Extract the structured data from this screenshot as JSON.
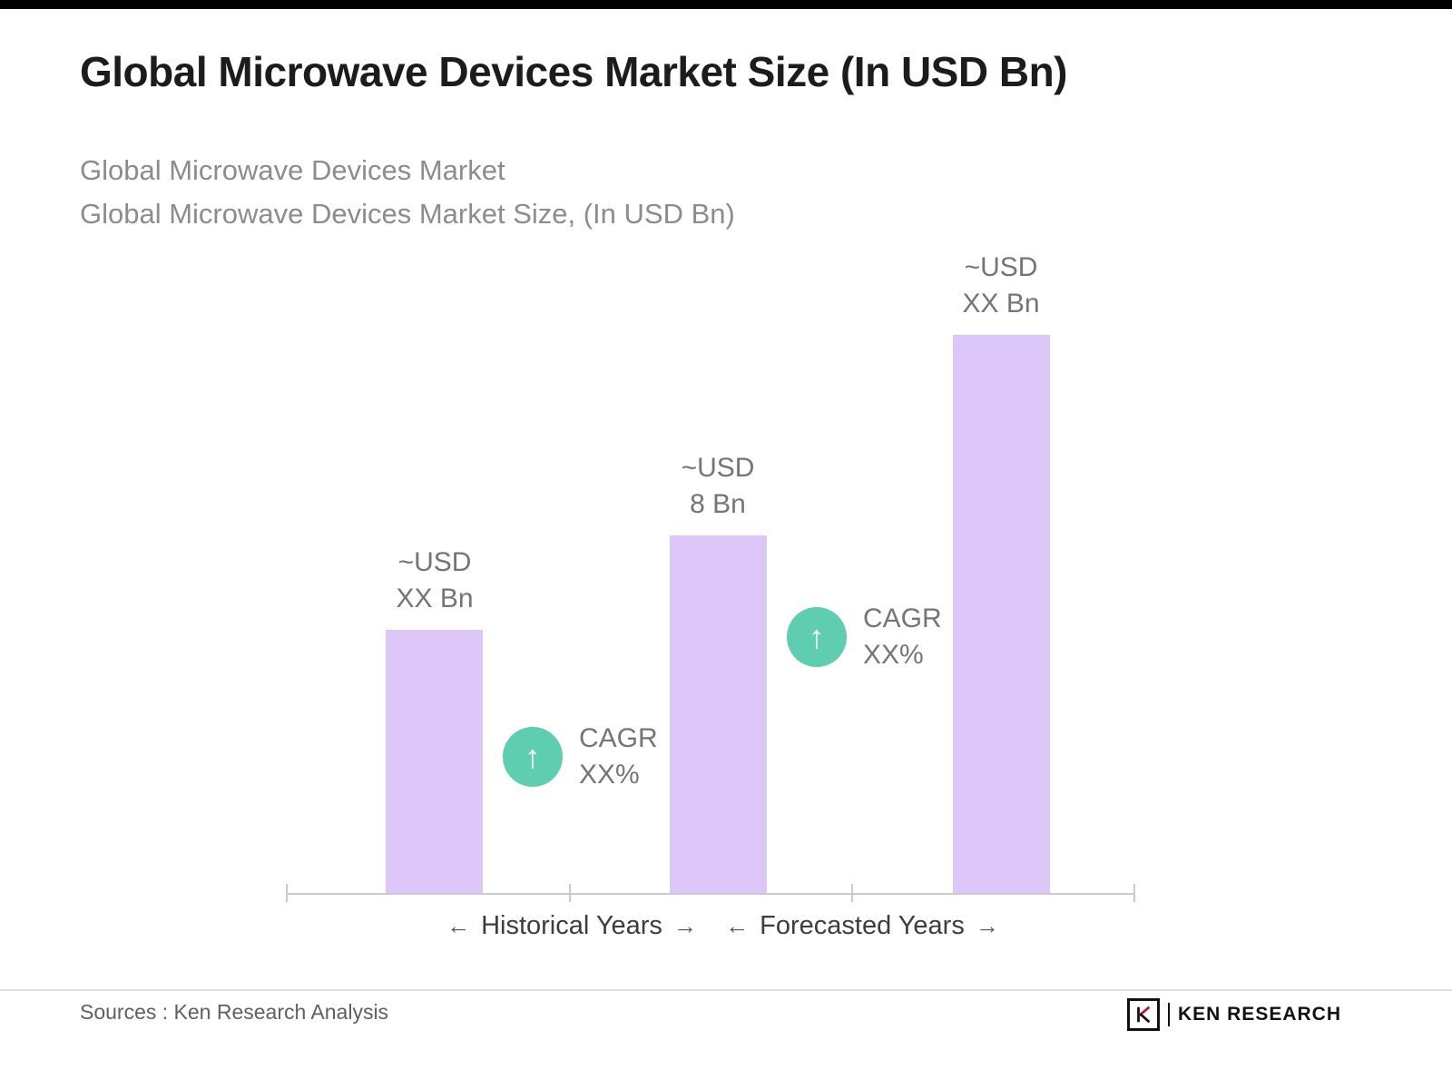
{
  "header": {
    "title": "Global Microwave Devices Market Size (In USD Bn)",
    "subtitle_lines": [
      "Global Microwave Devices Market",
      "Global Microwave Devices Market Size, (In USD Bn)"
    ]
  },
  "chart_data": {
    "type": "bar",
    "title": "Global Microwave Devices Market Size (In USD Bn)",
    "ylabel": "",
    "xlabel": "",
    "ylim": [
      0,
      13
    ],
    "grid": false,
    "bar_color": "#DCC7F8",
    "bars": [
      {
        "value": 5.9,
        "estimated": true,
        "label_line1": "~USD",
        "label_line2": "XX Bn"
      },
      {
        "value": 8,
        "estimated": false,
        "label_line1": "~USD",
        "label_line2": "8 Bn"
      },
      {
        "value": 12.5,
        "estimated": true,
        "label_line1": "~USD",
        "label_line2": "XX Bn"
      }
    ],
    "annotations": [
      {
        "icon": "up-arrow",
        "icon_glyph": "↑",
        "line1": "CAGR",
        "line2": "XX%",
        "color": "#5ECDB0"
      },
      {
        "icon": "up-arrow",
        "icon_glyph": "↑",
        "line1": "CAGR",
        "line2": "XX%",
        "color": "#5ECDB0"
      }
    ],
    "axis_groups": [
      {
        "left_arrow": "←",
        "label": "Historical Years",
        "right_arrow": "→"
      },
      {
        "left_arrow": "←",
        "label": "Forecasted Years",
        "right_arrow": "→"
      }
    ]
  },
  "footer": {
    "sources": "Sources : Ken Research Analysis",
    "logo": {
      "text": "KEN RESEARCH"
    }
  }
}
